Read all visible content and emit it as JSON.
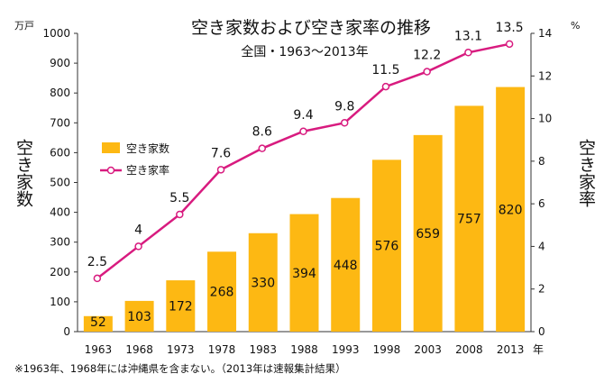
{
  "chart_data": {
    "type": "bar",
    "title": "空き家数および空き家率の推移",
    "subtitle": "全国・1963～2013年",
    "categories": [
      "1963",
      "1968",
      "1973",
      "1978",
      "1983",
      "1988",
      "1993",
      "1998",
      "2003",
      "2008",
      "2013"
    ],
    "series": [
      {
        "name": "空き家数",
        "type": "bar",
        "axis": "left",
        "values": [
          52,
          103,
          172,
          268,
          330,
          394,
          448,
          576,
          659,
          757,
          820
        ]
      },
      {
        "name": "空き家率",
        "type": "line",
        "axis": "right",
        "values": [
          2.5,
          4,
          5.5,
          7.6,
          8.6,
          9.4,
          9.8,
          11.5,
          12.2,
          13.1,
          13.5
        ]
      }
    ],
    "ylabel": "空き家数",
    "y2label": "空き家率",
    "yunit": "万戸",
    "y2unit": "%",
    "xunit": "年",
    "ylim": [
      0,
      1000
    ],
    "y2lim": [
      0,
      14
    ],
    "yticks": [
      0,
      100,
      200,
      300,
      400,
      500,
      600,
      700,
      800,
      900,
      1000
    ],
    "y2ticks": [
      0,
      2,
      4,
      6,
      8,
      10,
      12,
      14
    ],
    "legend_position": "left",
    "colors": {
      "bar": "#FDB813",
      "line": "#D81B7F"
    },
    "note": "※1963年、1968年には沖縄県を含まない。（2013年は速報集計結果）",
    "grid": false
  }
}
